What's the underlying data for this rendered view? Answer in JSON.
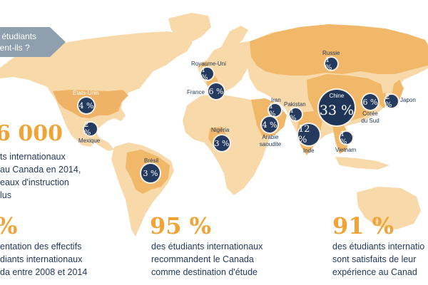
{
  "callout": {
    "line1": "s étudiants",
    "line2": "nent-ils ?"
  },
  "countries": [
    {
      "name": "Russie",
      "pct": "1 %"
    },
    {
      "name": "Royaume-Uni",
      "pct": "1 %"
    },
    {
      "name": "France",
      "pct": "6 %"
    },
    {
      "name": "États-Unis",
      "pct": "4 %"
    },
    {
      "name": "Mexique",
      "pct": "2 %"
    },
    {
      "name": "Nigéria",
      "pct": "3 %"
    },
    {
      "name": "Brésil",
      "pct": "3 %"
    },
    {
      "name": "Iran",
      "pct": "1 %"
    },
    {
      "name": "Pakistan",
      "pct": "1 %"
    },
    {
      "name": "Arabie saoudite",
      "pct": "4 %"
    },
    {
      "name": "Inde",
      "pct": "12 %"
    },
    {
      "name": "Chine",
      "pct": "33 %"
    },
    {
      "name": "Corée du Sud",
      "pct": "6 %"
    },
    {
      "name": "Japon",
      "pct": "2 %"
    },
    {
      "name": "Vietnam",
      "pct": "1 %"
    }
  ],
  "labels": {
    "arabie_line1": "Arabie",
    "arabie_line2": "saoudite",
    "coree_line1": "Corée",
    "coree_line2": "du Sud"
  },
  "stats": [
    {
      "value": "6 000",
      "lines": [
        "ts internationaux",
        "au Canada en 2014,",
        "eaux d'instruction",
        "lus"
      ]
    },
    {
      "value": "%",
      "lines": [
        "entation des effectifs",
        "diants internationaux",
        "da entre 2008 et 2014"
      ]
    },
    {
      "value": "95 %",
      "lines": [
        "des étudiants internationaux",
        "recommandent le Canada",
        "comme destination d'étude"
      ]
    },
    {
      "value": "91 %",
      "lines": [
        "des étudiants internatio",
        "sont satisfaits de leur",
        "expérience au Canad"
      ]
    }
  ],
  "colors": {
    "land_light": "#f8d9a9",
    "land_dark": "#f0b868",
    "land_usa": "#eeb366",
    "badge": "#243a5e",
    "stat_orange": "#f0a437",
    "text_navy": "#243a5e",
    "callout_gray": "#8f9fad"
  }
}
